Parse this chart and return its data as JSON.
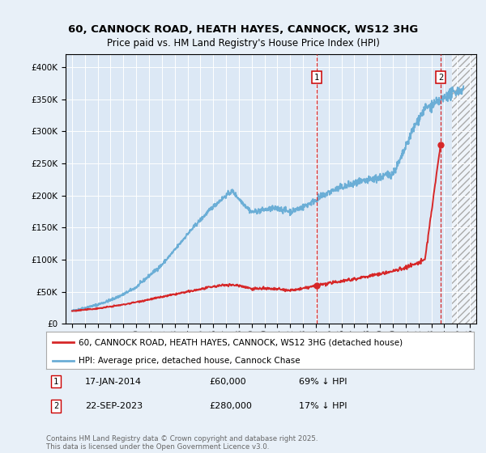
{
  "title_line1": "60, CANNOCK ROAD, HEATH HAYES, CANNOCK, WS12 3HG",
  "title_line2": "Price paid vs. HM Land Registry's House Price Index (HPI)",
  "legend_line1": "60, CANNOCK ROAD, HEATH HAYES, CANNOCK, WS12 3HG (detached house)",
  "legend_line2": "HPI: Average price, detached house, Cannock Chase",
  "annotation1_label": "1",
  "annotation1_date": "17-JAN-2014",
  "annotation1_price": "£60,000",
  "annotation1_hpi": "69% ↓ HPI",
  "annotation1_year": 2014.05,
  "annotation1_value": 60000,
  "annotation2_label": "2",
  "annotation2_date": "22-SEP-2023",
  "annotation2_price": "£280,000",
  "annotation2_hpi": "17% ↓ HPI",
  "annotation2_year": 2023.72,
  "annotation2_value": 280000,
  "hpi_color": "#6baed6",
  "price_color": "#d62728",
  "background_color": "#e8f0f8",
  "plot_bg_color": "#dce8f5",
  "footer_text": "Contains HM Land Registry data © Crown copyright and database right 2025.\nThis data is licensed under the Open Government Licence v3.0.",
  "ylim": [
    0,
    420000
  ],
  "xlim_start": 1994.5,
  "xlim_end": 2026.5,
  "hpi_knots_x": [
    1995,
    1996,
    1997,
    1998,
    1999,
    2000,
    2001,
    2002,
    2003,
    2004,
    2005,
    2006,
    2007,
    2007.5,
    2008,
    2009,
    2010,
    2011,
    2012,
    2013,
    2014,
    2015,
    2016,
    2017,
    2018,
    2019,
    2020,
    2020.5,
    2021,
    2021.5,
    2022,
    2022.5,
    2023,
    2023.5,
    2024,
    2024.5,
    2025,
    2025.5
  ],
  "hpi_knots_y": [
    20000,
    25000,
    30000,
    37000,
    46000,
    57000,
    75000,
    92000,
    115000,
    140000,
    162000,
    183000,
    200000,
    207000,
    195000,
    174000,
    178000,
    180000,
    175000,
    182000,
    193000,
    205000,
    213000,
    218000,
    223000,
    228000,
    235000,
    252000,
    275000,
    300000,
    320000,
    335000,
    340000,
    345000,
    352000,
    358000,
    363000,
    365000
  ],
  "price_knots_x": [
    1995,
    1996,
    1997,
    1998,
    1999,
    2000,
    2001,
    2002,
    2003,
    2004,
    2005,
    2006,
    2007,
    2008,
    2009,
    2010,
    2011,
    2012,
    2013,
    2014.05,
    2015,
    2016,
    2017,
    2018,
    2019,
    2020,
    2021,
    2022,
    2022.5,
    2023.72
  ],
  "price_knots_y": [
    20000,
    22000,
    24000,
    27000,
    30000,
    34000,
    38000,
    42000,
    46000,
    50000,
    54000,
    58000,
    61000,
    60000,
    55000,
    55000,
    54000,
    52000,
    55000,
    60000,
    63000,
    67000,
    70000,
    74000,
    78000,
    82000,
    88000,
    95000,
    100000,
    280000
  ]
}
